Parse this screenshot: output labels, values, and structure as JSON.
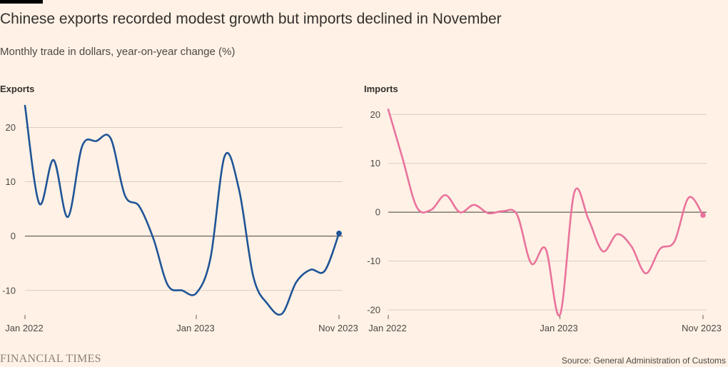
{
  "header": {
    "title": "Chinese exports recorded modest growth but imports declined in November",
    "subtitle": "Monthly trade in dollars, year-on-year change (%)"
  },
  "footer": {
    "logo": "FINANCIAL TIMES",
    "source": "Source: General Administration of Customs"
  },
  "colors": {
    "exports": "#1f5497",
    "imports": "#e9739c",
    "grid": "#d9cec4",
    "zero": "#5a524d"
  },
  "chart_data": [
    {
      "type": "line",
      "title": "Exports",
      "x": [
        "Jan 2022",
        "Feb 2022",
        "Mar 2022",
        "Apr 2022",
        "May 2022",
        "Jun 2022",
        "Jul 2022",
        "Aug 2022",
        "Sep 2022",
        "Oct 2022",
        "Nov 2022",
        "Dec 2022",
        "Jan 2023",
        "Feb 2023",
        "Mar 2023",
        "Apr 2023",
        "May 2023",
        "Jun 2023",
        "Jul 2023",
        "Aug 2023",
        "Sep 2023",
        "Oct 2023",
        "Nov 2023"
      ],
      "series": [
        {
          "name": "Exports",
          "values": [
            24.0,
            6.0,
            14.0,
            3.5,
            16.5,
            17.5,
            18.0,
            7.5,
            5.5,
            -0.5,
            -9.0,
            -10.0,
            -10.5,
            -4.0,
            14.8,
            8.5,
            -7.5,
            -12.5,
            -14.3,
            -8.5,
            -6.2,
            -6.4,
            0.5
          ]
        }
      ],
      "yticks": [
        20,
        10,
        0,
        -10
      ],
      "ylim": [
        -14.5,
        24
      ],
      "xtick_labels": [
        "Jan 2022",
        "Jan 2023",
        "Nov 2023"
      ],
      "grid": true
    },
    {
      "type": "line",
      "title": "Imports",
      "x": [
        "Jan 2022",
        "Feb 2022",
        "Mar 2022",
        "Apr 2022",
        "May 2022",
        "Jun 2022",
        "Jul 2022",
        "Aug 2022",
        "Sep 2022",
        "Oct 2022",
        "Nov 2022",
        "Dec 2022",
        "Jan 2023",
        "Feb 2023",
        "Mar 2023",
        "Apr 2023",
        "May 2023",
        "Jun 2023",
        "Jul 2023",
        "Aug 2023",
        "Sep 2023",
        "Oct 2023",
        "Nov 2023"
      ],
      "series": [
        {
          "name": "Imports",
          "values": [
            21.0,
            11.0,
            1.0,
            0.5,
            3.5,
            0.0,
            1.5,
            -0.2,
            0.2,
            -0.5,
            -10.5,
            -7.5,
            -21.0,
            4.0,
            -1.5,
            -8.0,
            -4.5,
            -7.0,
            -12.5,
            -7.5,
            -6.0,
            3.0,
            -0.6
          ]
        }
      ],
      "yticks": [
        20,
        10,
        0,
        -10,
        -20
      ],
      "ylim": [
        -21,
        21.5
      ],
      "xtick_labels": [
        "Jan 2022",
        "Jan 2023",
        "Nov 2023"
      ],
      "grid": true
    }
  ]
}
